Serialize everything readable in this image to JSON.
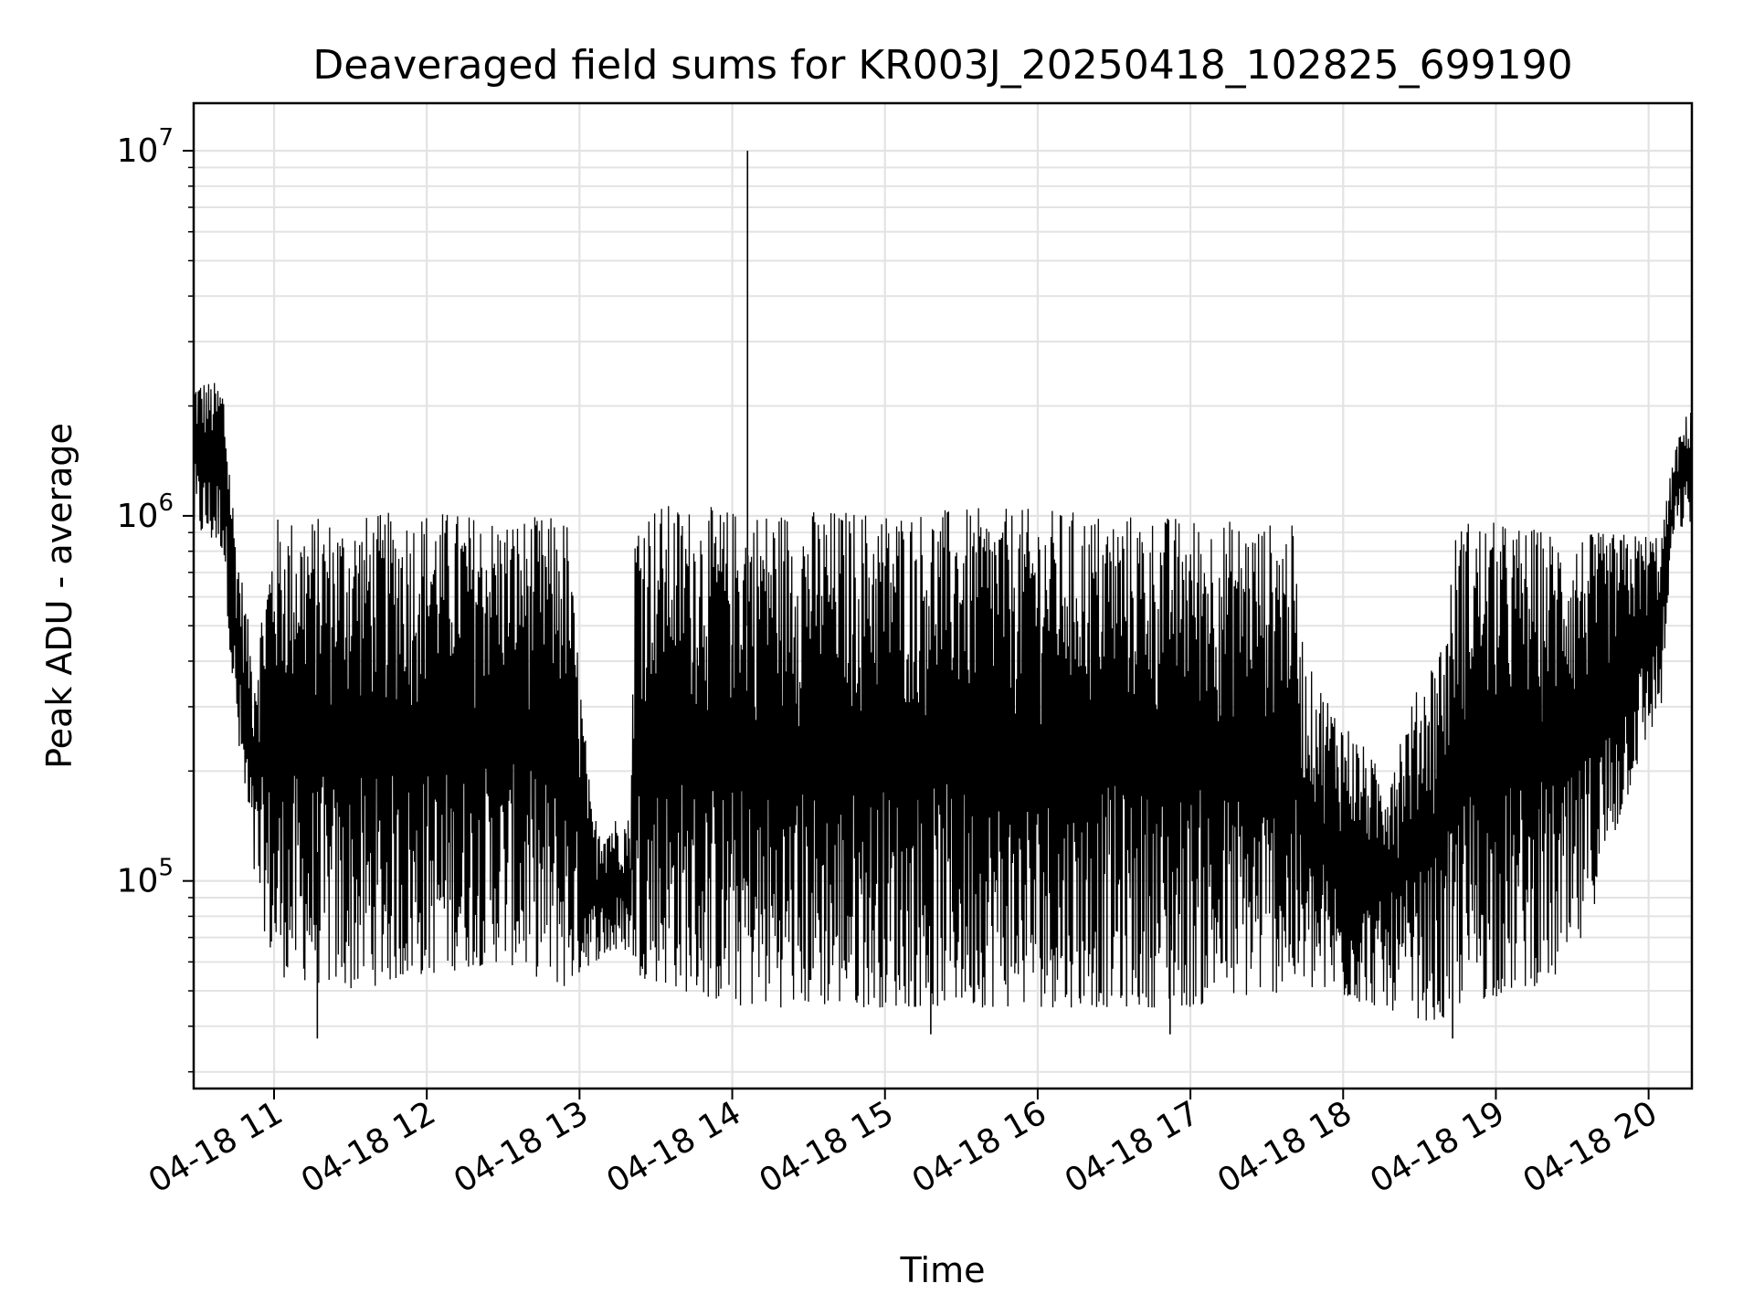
{
  "chart_data": {
    "type": "line",
    "title": "Deaveraged field sums for KR003J_20250418_102825_699190",
    "xlabel": "Time",
    "ylabel": "Peak ADU - average",
    "yscale": "log",
    "ylim": [
      27000,
      13500000
    ],
    "xlim": [
      "2025-04-18 10:28:25",
      "2025-04-18 20:17:00"
    ],
    "grid": true,
    "x_ticks": [
      {
        "time": "2025-04-18 11:00",
        "label": "04-18 11"
      },
      {
        "time": "2025-04-18 12:00",
        "label": "04-18 12"
      },
      {
        "time": "2025-04-18 13:00",
        "label": "04-18 13"
      },
      {
        "time": "2025-04-18 14:00",
        "label": "04-18 14"
      },
      {
        "time": "2025-04-18 15:00",
        "label": "04-18 15"
      },
      {
        "time": "2025-04-18 16:00",
        "label": "04-18 16"
      },
      {
        "time": "2025-04-18 17:00",
        "label": "04-18 17"
      },
      {
        "time": "2025-04-18 18:00",
        "label": "04-18 18"
      },
      {
        "time": "2025-04-18 19:00",
        "label": "04-18 19"
      },
      {
        "time": "2025-04-18 20:00",
        "label": "04-18 20"
      }
    ],
    "y_ticks": [
      {
        "value": 100000,
        "base": "10",
        "exp": "5"
      },
      {
        "value": 1000000,
        "base": "10",
        "exp": "6"
      },
      {
        "value": 10000000,
        "base": "10",
        "exp": "7"
      }
    ],
    "series": [
      {
        "color": "#000000",
        "envelope": [
          {
            "time": "2025-04-18 10:28:25",
            "low": 900000,
            "high": 2400000
          },
          {
            "time": "2025-04-18 10:40",
            "low": 800000,
            "high": 2300000
          },
          {
            "time": "2025-04-18 10:45",
            "low": 250000,
            "high": 900000
          },
          {
            "time": "2025-04-18 10:52",
            "low": 100000,
            "high": 400000
          },
          {
            "time": "2025-04-18 11:00",
            "low": 55000,
            "high": 1000000
          },
          {
            "time": "2025-04-18 11:30",
            "low": 50000,
            "high": 1000000
          },
          {
            "time": "2025-04-18 12:00",
            "low": 55000,
            "high": 1050000
          },
          {
            "time": "2025-04-18 12:30",
            "low": 60000,
            "high": 1000000
          },
          {
            "time": "2025-04-18 12:55",
            "low": 50000,
            "high": 1000000
          },
          {
            "time": "2025-04-18 13:05",
            "low": 60000,
            "high": 150000
          },
          {
            "time": "2025-04-18 13:20",
            "low": 65000,
            "high": 150000
          },
          {
            "time": "2025-04-18 13:22",
            "low": 55000,
            "high": 1100000
          },
          {
            "time": "2025-04-18 14:00",
            "low": 45000,
            "high": 1050000
          },
          {
            "time": "2025-04-18 15:00",
            "low": 45000,
            "high": 1050000
          },
          {
            "time": "2025-04-18 16:00",
            "low": 45000,
            "high": 1050000
          },
          {
            "time": "2025-04-18 17:00",
            "low": 45000,
            "high": 1000000
          },
          {
            "time": "2025-04-18 17:40",
            "low": 50000,
            "high": 950000
          },
          {
            "time": "2025-04-18 17:45",
            "low": 50000,
            "high": 400000
          },
          {
            "time": "2025-04-18 18:15",
            "low": 45000,
            "high": 200000
          },
          {
            "time": "2025-04-18 18:40",
            "low": 40000,
            "high": 500000
          },
          {
            "time": "2025-04-18 18:45",
            "low": 45000,
            "high": 1000000
          },
          {
            "time": "2025-04-18 19:30",
            "low": 55000,
            "high": 900000
          },
          {
            "time": "2025-04-18 19:55",
            "low": 200000,
            "high": 900000
          },
          {
            "time": "2025-04-18 20:05",
            "low": 300000,
            "high": 900000
          },
          {
            "time": "2025-04-18 20:10",
            "low": 900000,
            "high": 1500000
          },
          {
            "time": "2025-04-18 20:17:00",
            "low": 950000,
            "high": 2100000
          }
        ],
        "spikes": [
          {
            "time": "2025-04-18 14:06",
            "value": 10000000
          },
          {
            "time": "2025-04-18 11:17",
            "value": 37000
          },
          {
            "time": "2025-04-18 15:18",
            "value": 38000
          },
          {
            "time": "2025-04-18 16:52",
            "value": 38000
          },
          {
            "time": "2025-04-18 18:43",
            "value": 37000
          }
        ]
      }
    ]
  }
}
